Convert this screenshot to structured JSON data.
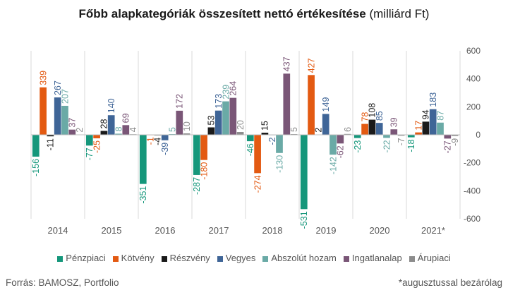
{
  "chart": {
    "title_main": "Főbb alapkategóriák összesített nettó értékesítése",
    "title_unit": "(milliárd Ft)"
  },
  "footer": {
    "source": "Forrás: BAMOSZ, Portfolio",
    "note": "*augusztussal bezárólag"
  },
  "chart_data": {
    "type": "bar",
    "categories": [
      "2014",
      "2015",
      "2016",
      "2017",
      "2018",
      "2019",
      "2020",
      "2021*"
    ],
    "series": [
      {
        "name": "Pénzpiaci",
        "color": "#15977b",
        "values": [
          -156,
          -77,
          -351,
          -287,
          -46,
          -531,
          -23,
          -18
        ]
      },
      {
        "name": "Kötvény",
        "color": "#e35a12",
        "values": [
          339,
          -25,
          -1,
          -180,
          -274,
          427,
          78,
          17
        ]
      },
      {
        "name": "Részvény",
        "color": "#1a1a1a",
        "values": [
          -11,
          28,
          -4,
          53,
          15,
          2,
          108,
          94
        ]
      },
      {
        "name": "Vegyes",
        "color": "#3f6597",
        "values": [
          267,
          140,
          -39,
          173,
          -2,
          149,
          85,
          183
        ]
      },
      {
        "name": "Abszolút hozam",
        "color": "#6aaaa6",
        "values": [
          207,
          8,
          5,
          239,
          -130,
          -142,
          -22,
          87
        ]
      },
      {
        "name": "Ingatlanalap",
        "color": "#7a5677",
        "values": [
          37,
          69,
          172,
          264,
          437,
          -62,
          39,
          -27
        ]
      },
      {
        "name": "Árupiaci",
        "color": "#8c8c8c",
        "values": [
          2,
          4,
          10,
          20,
          5,
          6,
          -7,
          -9
        ]
      }
    ],
    "ylim": [
      -600,
      600
    ],
    "yticks": [
      -600,
      -400,
      -200,
      0,
      200,
      400,
      600
    ],
    "y_axis_side": "right",
    "grid": "vertical separators between categories",
    "legend_position": "bottom"
  }
}
